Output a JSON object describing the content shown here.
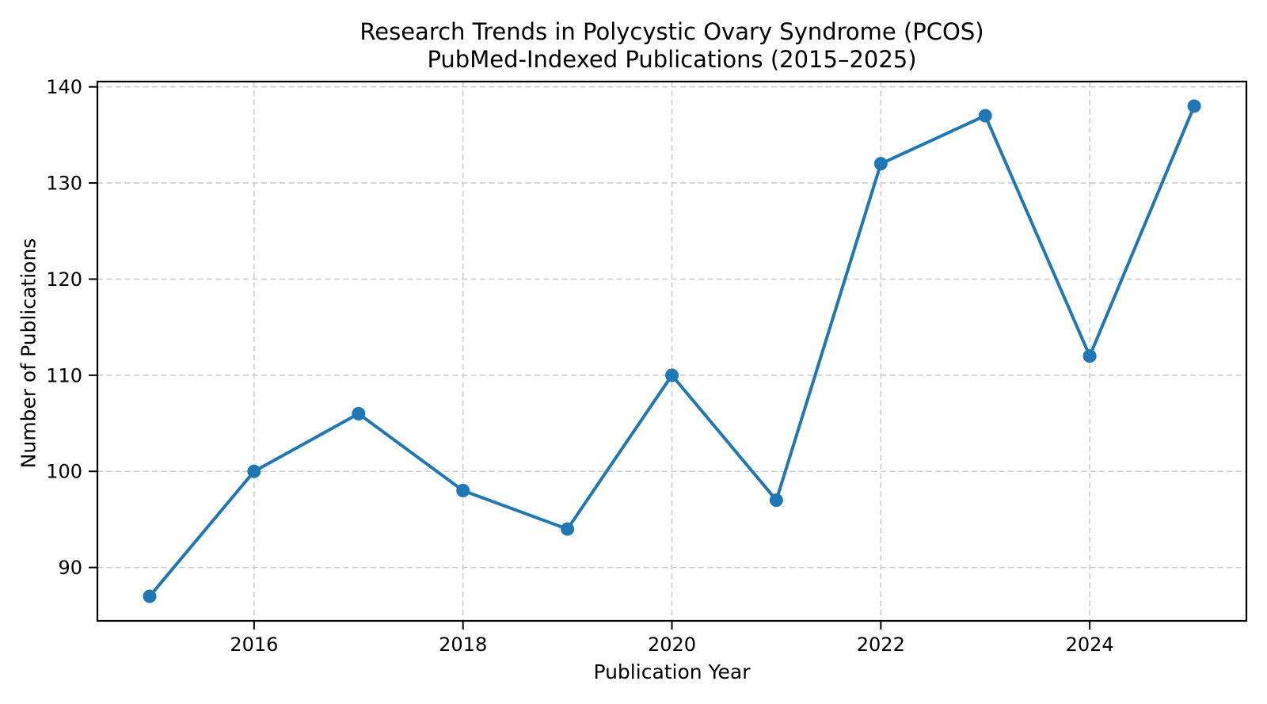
{
  "title": {
    "line1": "Research Trends in Polycystic Ovary Syndrome (PCOS)",
    "line2": "PubMed-Indexed Publications (2015–2025)"
  },
  "chart_data": {
    "type": "line",
    "title": "Research Trends in Polycystic Ovary Syndrome (PCOS)\nPubMed-Indexed Publications (2015–2025)",
    "xlabel": "Publication Year",
    "ylabel": "Number of Publications",
    "x": [
      2015,
      2016,
      2017,
      2018,
      2019,
      2020,
      2021,
      2022,
      2023,
      2024,
      2025
    ],
    "values": [
      87,
      100,
      106,
      98,
      94,
      110,
      97,
      132,
      137,
      112,
      138
    ],
    "x_ticks": [
      2016,
      2018,
      2020,
      2022,
      2024
    ],
    "y_ticks": [
      90,
      100,
      110,
      120,
      130,
      140
    ],
    "xlim": [
      2014.5,
      2025.5
    ],
    "ylim": [
      84.45,
      140.55
    ],
    "grid": true,
    "legend": false,
    "line_color": "#1f77b4",
    "marker": "circle",
    "grid_color": "#cccccc",
    "spine_color": "#000000"
  }
}
